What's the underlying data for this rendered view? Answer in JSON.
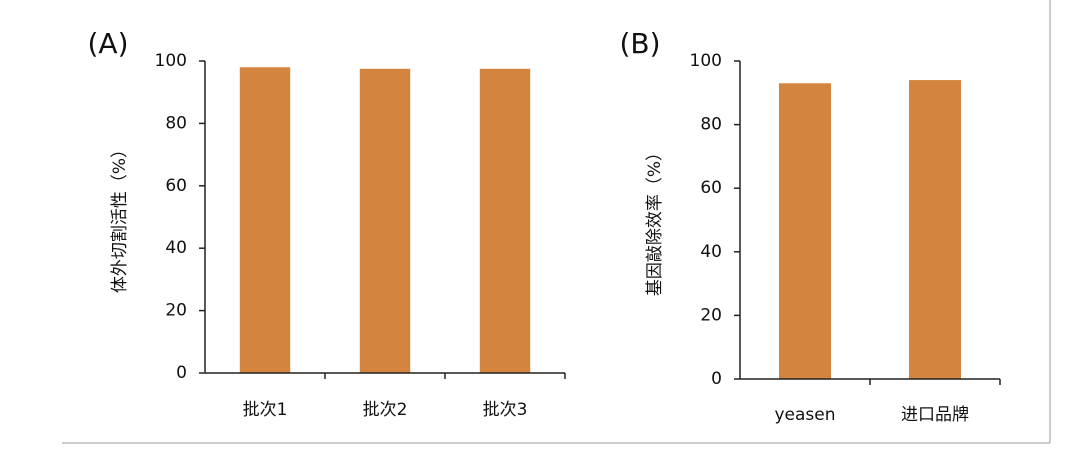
{
  "chart_data": [
    {
      "type": "bar",
      "panel_label": "(A)",
      "y_label": "体外切割活性（%）",
      "categories": [
        "批次1",
        "批次2",
        "批次3"
      ],
      "values": [
        98,
        97.5,
        97.5
      ],
      "color": "#d4843e",
      "ylim": [
        0,
        100
      ],
      "yticks": [
        0,
        20,
        40,
        60,
        80,
        100
      ]
    },
    {
      "type": "bar",
      "panel_label": "(B)",
      "y_label": "基因敲除效率（%）",
      "categories": [
        "yeasen",
        "进口品牌"
      ],
      "values": [
        93,
        94
      ],
      "color": "#d4843e",
      "ylim": [
        0,
        100
      ],
      "yticks": [
        0,
        20,
        40,
        60,
        80,
        100
      ]
    }
  ]
}
